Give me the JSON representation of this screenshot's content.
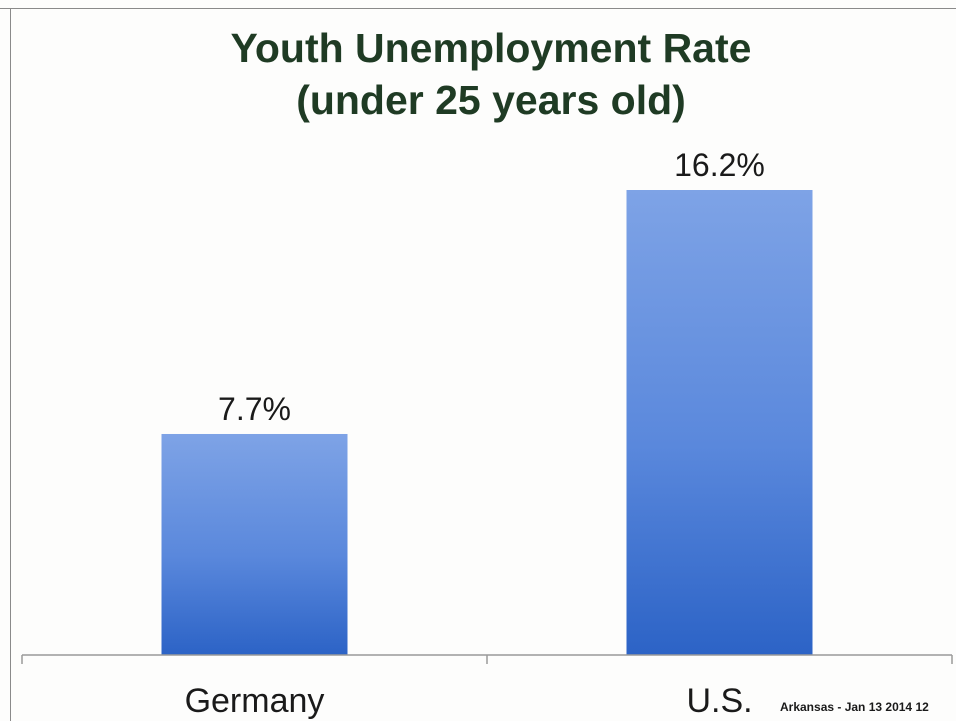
{
  "chart_data": {
    "type": "bar",
    "title": "Youth Unemployment Rate",
    "subtitle": "(under 25 years old)",
    "categories": [
      "Germany",
      "U.S."
    ],
    "values": [
      7.7,
      16.2
    ],
    "data_labels": [
      "7.7%",
      "16.2%"
    ],
    "xlabel": "",
    "ylabel": "",
    "ylim": [
      0,
      16.2
    ],
    "grid": false,
    "legend": "none",
    "bar_color": "#3f73d0"
  },
  "footer": {
    "text": "Arkansas - Jan 13 2014",
    "page_number": "12"
  }
}
